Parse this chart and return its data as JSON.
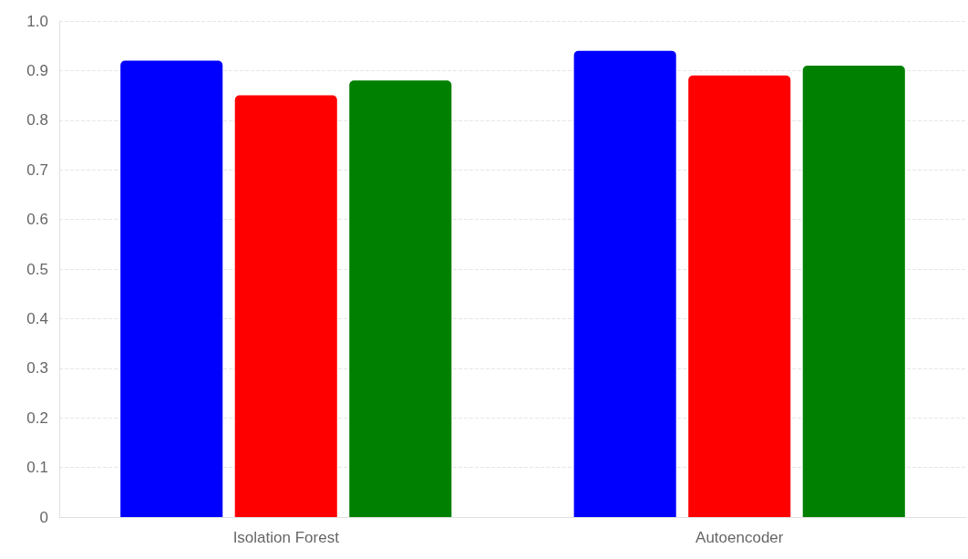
{
  "chart_data": {
    "type": "bar",
    "categories": [
      "Isolation Forest",
      "Autoencoder"
    ],
    "series": [
      {
        "color": "#0000ff",
        "values": [
          0.92,
          0.94
        ]
      },
      {
        "color": "#ff0000",
        "values": [
          0.85,
          0.89
        ]
      },
      {
        "color": "#008000",
        "values": [
          0.88,
          0.91
        ]
      }
    ],
    "ylim": [
      0,
      1
    ],
    "yticks": [
      0,
      0.1,
      0.2,
      0.3,
      0.4,
      0.5,
      0.6,
      0.7,
      0.8,
      0.9,
      {
        "value": 1,
        "label": "1.0"
      }
    ],
    "grid": "y"
  }
}
